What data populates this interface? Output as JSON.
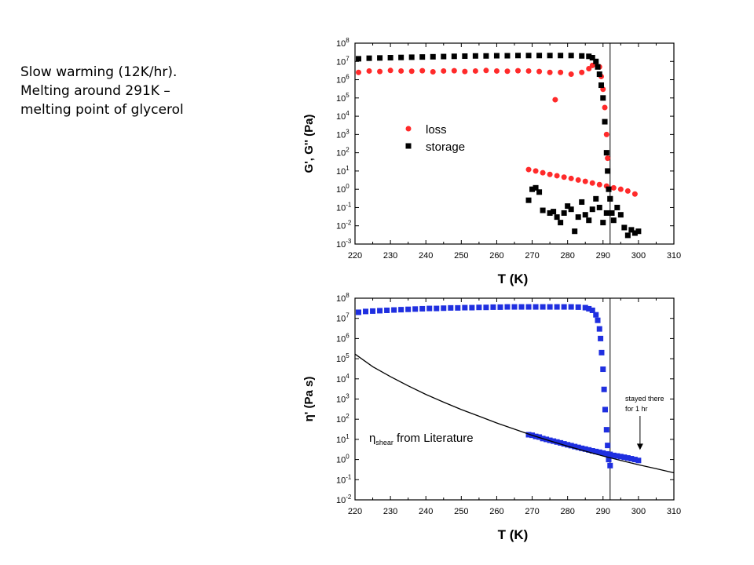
{
  "caption": {
    "line1": "Slow warming (12K/hr).",
    "line2": "Melting around 291K –",
    "line3": "melting point of glycerol"
  },
  "colors": {
    "loss": "#ff2a2a",
    "storage": "#000000",
    "viscosity": "#1f2fe0",
    "literature": "#000000",
    "marker": "#000000"
  },
  "chart_data": [
    {
      "type": "scatter",
      "title": "",
      "xlabel": "T (K)",
      "ylabel": "G', G'' (Pa)",
      "xlim": [
        220,
        310
      ],
      "ylim": [
        0.001,
        100000000
      ],
      "yscale": "log",
      "xticks": [
        "220",
        "230",
        "240",
        "250",
        "260",
        "270",
        "280",
        "290",
        "300",
        "310"
      ],
      "yticks": [
        {
          "base": "10",
          "exp": "-3"
        },
        {
          "base": "10",
          "exp": "-2"
        },
        {
          "base": "10",
          "exp": "-1"
        },
        {
          "base": "10",
          "exp": "0"
        },
        {
          "base": "10",
          "exp": "1"
        },
        {
          "base": "10",
          "exp": "2"
        },
        {
          "base": "10",
          "exp": "3"
        },
        {
          "base": "10",
          "exp": "4"
        },
        {
          "base": "10",
          "exp": "5"
        },
        {
          "base": "10",
          "exp": "6"
        },
        {
          "base": "10",
          "exp": "7"
        },
        {
          "base": "10",
          "exp": "8"
        }
      ],
      "vline_x": 292,
      "legend_position": "center-left",
      "series": [
        {
          "name": "loss",
          "marker": "circle",
          "color": "#ff2a2a",
          "x": [
            221,
            224,
            227,
            230,
            233,
            236,
            239,
            242,
            245,
            248,
            251,
            254,
            257,
            260,
            263,
            266,
            269,
            272,
            275,
            276.5,
            278,
            281,
            284,
            286,
            287,
            288,
            289,
            289.5,
            290,
            290.5,
            291,
            291.3,
            269,
            271,
            273,
            275,
            277,
            279,
            281,
            283,
            285,
            287,
            289,
            291,
            293,
            295,
            297,
            299
          ],
          "y": [
            2500000,
            3000000,
            2800000,
            3200000,
            3000000,
            2900000,
            3100000,
            2700000,
            3000000,
            3100000,
            2800000,
            3000000,
            3200000,
            3000000,
            2900000,
            3100000,
            3000000,
            2800000,
            2500000,
            80000,
            2500000,
            2000000,
            2500000,
            4000000,
            6000000,
            8000000,
            5000000,
            1500000,
            300000,
            30000,
            1000,
            50,
            12,
            10,
            8,
            6.5,
            5.5,
            4.6,
            3.9,
            3.2,
            2.7,
            2.2,
            1.8,
            1.5,
            1.2,
            1,
            0.8,
            0.55
          ]
        },
        {
          "name": "storage",
          "marker": "square",
          "color": "#000000",
          "x": [
            221,
            224,
            227,
            230,
            233,
            236,
            239,
            242,
            245,
            248,
            251,
            254,
            257,
            260,
            263,
            266,
            269,
            272,
            275,
            278,
            281,
            284,
            286,
            287,
            288,
            288.5,
            289,
            289.5,
            290,
            290.5,
            291,
            291.3,
            291.6,
            292,
            292.5,
            269,
            270,
            271,
            272,
            273,
            275,
            276,
            277,
            278,
            279,
            280,
            281,
            282,
            283,
            284,
            285,
            286,
            287,
            288,
            289,
            290,
            291,
            292,
            293,
            294,
            295,
            296,
            297,
            298,
            299,
            300
          ],
          "y": [
            14000000,
            15000000,
            15500000,
            16000000,
            16500000,
            17000000,
            17500000,
            18000000,
            18500000,
            19000000,
            19500000,
            20000000,
            20000000,
            20500000,
            20500000,
            21000000,
            21000000,
            21000000,
            21000000,
            21000000,
            21000000,
            20000000,
            19000000,
            16000000,
            10000000,
            5000000,
            2000000,
            500000,
            100000,
            5000,
            100,
            10,
            1,
            0.3,
            0.05,
            0.25,
            1,
            1.2,
            0.7,
            0.07,
            0.05,
            0.06,
            0.03,
            0.015,
            0.05,
            0.12,
            0.08,
            0.005,
            0.03,
            0.2,
            0.04,
            0.02,
            0.08,
            0.3,
            0.1,
            0.015,
            0.05,
            0.3,
            0.02,
            0.1,
            0.04,
            0.008,
            0.003,
            0.006,
            0.004,
            0.005
          ]
        }
      ]
    },
    {
      "type": "scatter",
      "title": "",
      "xlabel": "T (K)",
      "ylabel": "η' (Pa s)",
      "xlim": [
        220,
        310
      ],
      "ylim": [
        0.01,
        100000000
      ],
      "yscale": "log",
      "xticks": [
        "220",
        "230",
        "240",
        "250",
        "260",
        "270",
        "280",
        "290",
        "300",
        "310"
      ],
      "yticks": [
        {
          "base": "10",
          "exp": "-2"
        },
        {
          "base": "10",
          "exp": "-1"
        },
        {
          "base": "10",
          "exp": "0"
        },
        {
          "base": "10",
          "exp": "1"
        },
        {
          "base": "10",
          "exp": "2"
        },
        {
          "base": "10",
          "exp": "3"
        },
        {
          "base": "10",
          "exp": "4"
        },
        {
          "base": "10",
          "exp": "5"
        },
        {
          "base": "10",
          "exp": "6"
        },
        {
          "base": "10",
          "exp": "7"
        },
        {
          "base": "10",
          "exp": "8"
        }
      ],
      "vline_x": 292,
      "series": [
        {
          "name": "",
          "marker": "square",
          "color": "#1f2fe0",
          "x": [
            221,
            223,
            225,
            227,
            229,
            231,
            233,
            235,
            237,
            239,
            241,
            243,
            245,
            247,
            249,
            251,
            253,
            255,
            257,
            259,
            261,
            263,
            265,
            267,
            269,
            271,
            273,
            275,
            277,
            279,
            281,
            283,
            285,
            286,
            287,
            288,
            288.5,
            289,
            289.3,
            289.6,
            290,
            290.3,
            290.6,
            291,
            291.3,
            291.6,
            292,
            269,
            270,
            271,
            272,
            273,
            274,
            275,
            276,
            277,
            278,
            279,
            280,
            281,
            282,
            283,
            284,
            285,
            286,
            287,
            288,
            289,
            290,
            291,
            292,
            293,
            294,
            295,
            296,
            297,
            298,
            299,
            300
          ],
          "y": [
            20000000,
            22000000,
            23000000,
            24000000,
            25000000,
            26000000,
            27000000,
            28000000,
            29000000,
            30000000,
            31000000,
            31000000,
            32000000,
            33000000,
            33000000,
            34000000,
            34000000,
            35000000,
            35000000,
            36000000,
            36000000,
            37000000,
            37000000,
            37000000,
            37000000,
            37000000,
            37000000,
            37000000,
            37000000,
            37000000,
            37000000,
            36000000,
            34000000,
            30000000,
            25000000,
            15000000,
            8000000,
            3000000,
            1000000,
            200000,
            30000,
            3000,
            300,
            30,
            5,
            1,
            0.5,
            17,
            16,
            14,
            13,
            11,
            10,
            9,
            8.2,
            7.4,
            6.7,
            6,
            5.4,
            4.9,
            4.4,
            4,
            3.6,
            3.3,
            3,
            2.7,
            2.5,
            2.3,
            2.1,
            1.9,
            1.8,
            1.6,
            1.5,
            1.4,
            1.3,
            1.2,
            1.1,
            1,
            0.9
          ]
        },
        {
          "name": "ηshear from Literature",
          "marker": "line",
          "color": "#000000",
          "x": [
            220,
            225,
            230,
            235,
            240,
            245,
            250,
            255,
            260,
            265,
            270,
            275,
            280,
            285,
            290,
            295,
            300,
            305,
            310
          ],
          "y": [
            170000,
            40000,
            13000,
            4500,
            1700,
            700,
            300,
            140,
            65,
            32,
            16,
            8.5,
            4.6,
            2.6,
            1.5,
            0.9,
            0.55,
            0.35,
            0.22
          ]
        }
      ],
      "legend": {
        "eta_sym": "η",
        "eta_sub": "shear",
        "text": " from Literature",
        "position": "center-left"
      },
      "annotation": {
        "line1": "stayed there",
        "line2": "for 1 hr",
        "arrow_x": 300,
        "arrow_from_y": 200,
        "arrow_to_y": 3
      }
    }
  ]
}
